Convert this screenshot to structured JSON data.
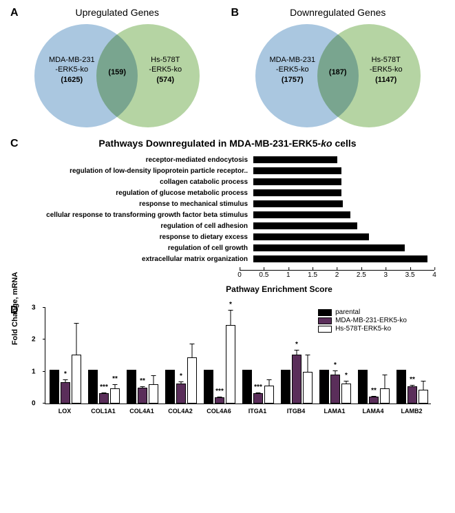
{
  "panelA": {
    "label": "A",
    "title": "Upregulated Genes",
    "left_circle": {
      "label": "MDA-MB-231\n-ERK5-ko",
      "count": "(1625)",
      "color": "#aac7e0"
    },
    "right_circle": {
      "label": "Hs-578T\n-ERK5-ko",
      "count": "(574)",
      "color": "#b5d4a3"
    },
    "overlap": "(159)",
    "overlap_color": "#90b6a2"
  },
  "panelB": {
    "label": "B",
    "title": "Downregulated Genes",
    "left_circle": {
      "label": "MDA-MB-231\n-ERK5-ko",
      "count": "(1757)",
      "color": "#aac7e0"
    },
    "right_circle": {
      "label": "Hs-578T\n-ERK5-ko",
      "count": "(1147)",
      "color": "#b5d4a3"
    },
    "overlap": "(187)",
    "overlap_color": "#90b6a2"
  },
  "panelC": {
    "label": "C",
    "title": "Pathways Downregulated in MDA-MB-231-ERK5-ko cells",
    "title_italic_part": "ko",
    "xlabel": "Pathway Enrichment Score",
    "xlim": [
      0,
      4
    ],
    "xtick_step": 0.5,
    "bar_color": "#000000",
    "pathways": [
      {
        "label": "receptor-mediated endocytosis",
        "value": 1.85
      },
      {
        "label": "regulation of low-density lipoprotein particle receptor..",
        "value": 1.95
      },
      {
        "label": "collagen catabolic process",
        "value": 1.95
      },
      {
        "label": "regulation of glucose metabolic process",
        "value": 1.95
      },
      {
        "label": "response to mechanical stimulus",
        "value": 1.98
      },
      {
        "label": "cellular response to transforming growth factor beta stimulus",
        "value": 2.15
      },
      {
        "label": "regulation of cell adhesion",
        "value": 2.3
      },
      {
        "label": "response to dietary excess",
        "value": 2.55
      },
      {
        "label": "regulation of cell growth",
        "value": 3.35
      },
      {
        "label": "extracellular matrix organization",
        "value": 3.85
      }
    ]
  },
  "panelD": {
    "label": "D",
    "ylabel": "Fold Change, mRNA",
    "ylim": [
      0,
      3
    ],
    "ytick_step": 1,
    "xtick_step": 0.5,
    "legend": [
      {
        "label": "parental",
        "color": "#000000",
        "border": "#000000"
      },
      {
        "label": "MDA-MB-231-ERK5-ko",
        "color": "#5a2e5a",
        "border": "#000000"
      },
      {
        "label": "Hs-578T-ERK5-ko",
        "color": "#ffffff",
        "border": "#000000"
      }
    ],
    "genes": [
      {
        "name": "LOX",
        "values": [
          1.0,
          0.62,
          1.48
        ],
        "errors": [
          0,
          0.1,
          1.0
        ],
        "sig": [
          "",
          "*",
          ""
        ]
      },
      {
        "name": "COL1A1",
        "values": [
          1.0,
          0.28,
          0.43
        ],
        "errors": [
          0,
          0.05,
          0.15
        ],
        "sig": [
          "",
          "***",
          "**"
        ]
      },
      {
        "name": "COL4A1",
        "values": [
          1.0,
          0.45,
          0.56
        ],
        "errors": [
          0,
          0.07,
          0.3
        ],
        "sig": [
          "",
          "**",
          ""
        ]
      },
      {
        "name": "COL4A2",
        "values": [
          1.0,
          0.57,
          1.4
        ],
        "errors": [
          0,
          0.1,
          0.45
        ],
        "sig": [
          "",
          "*",
          ""
        ]
      },
      {
        "name": "COL4A6",
        "values": [
          1.0,
          0.14,
          2.4
        ],
        "errors": [
          0,
          0.05,
          0.5
        ],
        "sig": [
          "",
          "***",
          "*"
        ]
      },
      {
        "name": "ITGA1",
        "values": [
          1.0,
          0.28,
          0.52
        ],
        "errors": [
          0,
          0.05,
          0.2
        ],
        "sig": [
          "",
          "***",
          ""
        ]
      },
      {
        "name": "ITGB4",
        "values": [
          1.0,
          1.48,
          0.95
        ],
        "errors": [
          0,
          0.18,
          0.55
        ],
        "sig": [
          "",
          "*",
          ""
        ]
      },
      {
        "name": "LAMA1",
        "values": [
          1.0,
          0.85,
          0.58
        ],
        "errors": [
          0,
          0.15,
          0.1
        ],
        "sig": [
          "",
          "*",
          "*"
        ]
      },
      {
        "name": "LAMA4",
        "values": [
          1.0,
          0.17,
          0.42
        ],
        "errors": [
          0,
          0.05,
          0.45
        ],
        "sig": [
          "",
          "**",
          ""
        ]
      },
      {
        "name": "LAMB2",
        "values": [
          1.0,
          0.5,
          0.38
        ],
        "errors": [
          0,
          0.06,
          0.3
        ],
        "sig": [
          "",
          "**",
          ""
        ]
      }
    ],
    "colors": [
      "#000000",
      "#5a2e5a",
      "#ffffff"
    ]
  }
}
